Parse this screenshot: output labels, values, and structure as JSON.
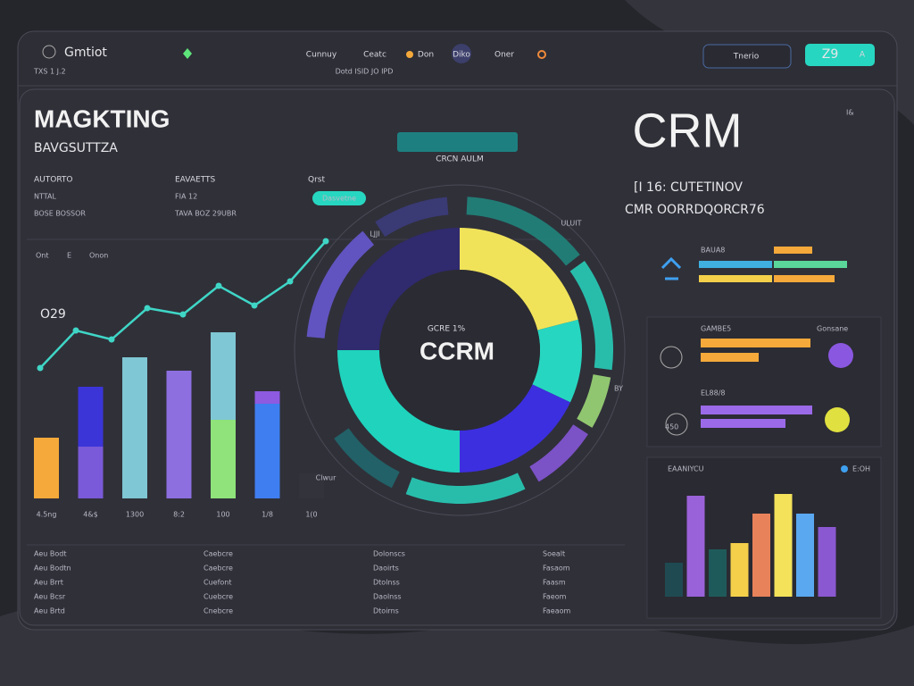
{
  "header": {
    "brand": "Gmtiot",
    "sub": "TXS 1 J.2",
    "nav": [
      "Cunnuy",
      "Ceatc",
      "Don",
      "Diko",
      "Oner"
    ],
    "nav_sub": "Dotd ISID JO IPD",
    "search": "Tnerio",
    "button": [
      "Z9",
      "A"
    ]
  },
  "left": {
    "title": "MAGKTING",
    "subtitle": "BAVGSUTTZA",
    "fields": [
      [
        "AUTORTO",
        "NTTAL",
        "BOSE BOSSOR"
      ],
      [
        "EAVAETTS",
        "FIA 12",
        "TAVA BOZ 29UBR"
      ]
    ],
    "tag": "Qrst",
    "pill": "Dasvetne",
    "chart_header": [
      "Ont",
      "E",
      "Onon"
    ],
    "chart_label": "O29",
    "categories": [
      "4.5ng",
      "4&$",
      "1300",
      "8:2",
      "100",
      "1/8",
      "1(0"
    ],
    "stacks": [
      [
        68
      ],
      [
        58,
        67
      ],
      [
        158
      ],
      [
        143
      ],
      [
        88,
        98
      ],
      [
        106,
        14
      ],
      [
        28
      ]
    ],
    "stack_colors": [
      "#f4a93a",
      "#7a5ad8",
      "#7fc7d4",
      "#8d6fe0",
      "#8fe37a",
      "#3f7ef0",
      "#33333c"
    ],
    "upper_colors": [
      "#f4a93a",
      "#3b35d8",
      "#7fc7d4",
      "#8d6fe0",
      "#7fc7d4",
      "#8d5ae0",
      "#33333c"
    ],
    "line": [
      146,
      188,
      178,
      213,
      206,
      238,
      216,
      243,
      288
    ],
    "line_color": "#3fd6c6"
  },
  "donut": {
    "title": "CRCN AULM",
    "center_top": "GCRE 1%",
    "center": "CCRM",
    "values": [
      21,
      11,
      18,
      25,
      25
    ],
    "colors": [
      "#f0e35a",
      "#27d6c0",
      "#3c2fe0",
      "#1fd3bd",
      "#302a6e"
    ],
    "ring_labels": [
      "LJJI",
      "ULUIT",
      "BY",
      "Clwur"
    ]
  },
  "right": {
    "title": "CRM",
    "line1": "[I 16: CUTETINOV",
    "line2": "CMR OORRDQORCR76",
    "corner": "I&",
    "mini_title": "BAUA8",
    "mini_rows": [
      [
        0,
        43
      ],
      [
        82,
        82
      ],
      [
        82,
        68
      ]
    ],
    "panel_labels": [
      "GAMBE5",
      "Gonsane",
      "EL88/8",
      "450"
    ],
    "hbars": [
      123,
      65,
      125,
      95
    ],
    "hbar_colors": [
      "#f4a93a",
      "#f4a93a",
      "#9a6ae8",
      "#9a6ae8"
    ],
    "chart_title": "EAANIYCU",
    "chart_legend": "E:OH",
    "bars": [
      38,
      113,
      53,
      60,
      93,
      115,
      93,
      78
    ],
    "bar_colors": [
      "#1f4a52",
      "#9a62d8",
      "#1f5a5a",
      "#f4cf4a",
      "#e8825a",
      "#f3e25a",
      "#5aa8f0",
      "#8a58d0"
    ]
  },
  "table": [
    [
      "Aeu Bodt",
      "Aeu Bodtn",
      "Aeu Brrt",
      "Aeu Bcsr",
      "Aeu Brtd"
    ],
    [
      "Caebcre",
      "Caebcre",
      "Cuefont",
      "Cuebcre",
      "Cnebcre"
    ],
    [
      "Dolonscs",
      "Daoirts",
      "Dtolnss",
      "Daolnss",
      "Dtoirns"
    ],
    [
      "Soealt",
      "Fasaom",
      "Faasm",
      "Faeom",
      "Faeaom"
    ]
  ]
}
